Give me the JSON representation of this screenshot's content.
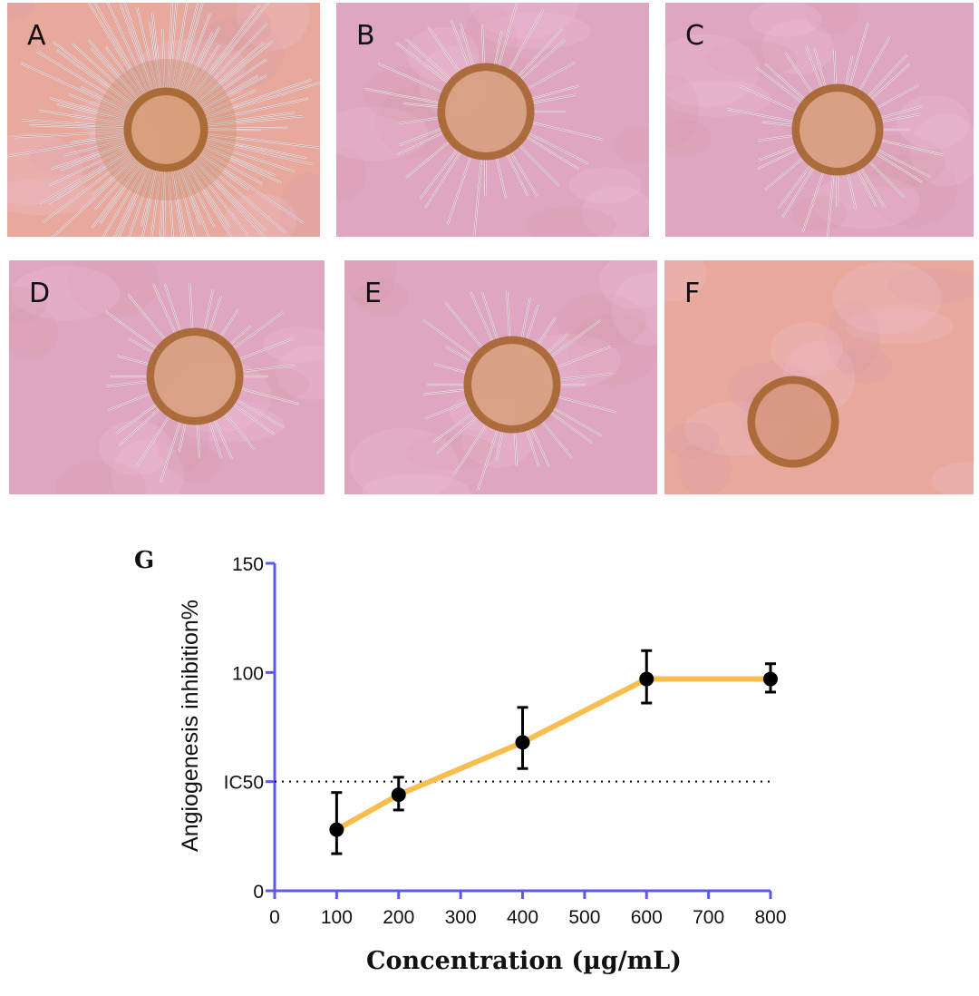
{
  "panels": [
    {
      "label": "A",
      "outgrowth": "dense"
    },
    {
      "label": "B",
      "outgrowth": "moderate"
    },
    {
      "label": "C",
      "outgrowth": "moderate"
    },
    {
      "label": "D",
      "outgrowth": "moderate"
    },
    {
      "label": "E",
      "outgrowth": "moderate"
    },
    {
      "label": "F",
      "outgrowth": "none"
    }
  ],
  "colors": {
    "tissue_bg": "#e9a89c",
    "tissue_bg_pink": "#dfa6c2",
    "ring": "#a5642c",
    "axis": "#5b5be6",
    "line": "#f7bd4e",
    "marker": "#000000",
    "ic50_line": "#000000"
  },
  "chart_data": {
    "type": "line",
    "panel_label": "G",
    "xlabel": "Concentration (µg/mL)",
    "ylabel": "Angiogenesis inhibition%",
    "xlim": [
      0,
      800
    ],
    "ylim": [
      0,
      150
    ],
    "x_ticks": [
      "0",
      "100",
      "200",
      "300",
      "400",
      "500",
      "600",
      "700",
      "800"
    ],
    "y_ticks": [
      "0",
      "IC50",
      "100",
      "150"
    ],
    "y_tick_values": [
      0,
      50,
      100,
      150
    ],
    "series": [
      {
        "x": [
          100,
          200,
          400,
          600,
          800
        ],
        "y": [
          28,
          44,
          68,
          97,
          97
        ],
        "err_low": [
          17,
          37,
          56,
          86,
          91
        ],
        "err_high": [
          45,
          52,
          84,
          110,
          104
        ]
      }
    ],
    "reference_line": {
      "y": 50,
      "label": "IC50",
      "style": "dotted"
    },
    "grid": false
  }
}
